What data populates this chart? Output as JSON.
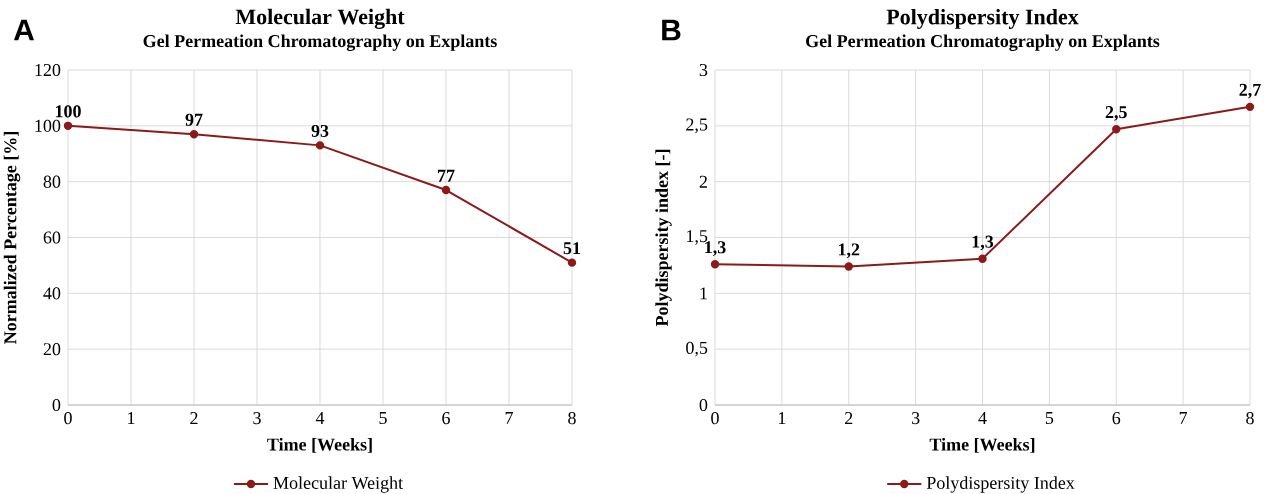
{
  "chart_data": [
    {
      "type": "line",
      "title": "Molecular Weight",
      "subtitle": "Gel Permeation Chromatography on Explants",
      "xlabel": "Time [Weeks]",
      "ylabel": "Normalized Percentage [%]",
      "annotations": [
        "A"
      ],
      "x": [
        0,
        2,
        4,
        6,
        8
      ],
      "series": [
        {
          "name": "Molecular Weight",
          "color": "#8b1a1a",
          "values": [
            100,
            97,
            93,
            77,
            51
          ]
        }
      ],
      "data_labels": true,
      "xlim": [
        0,
        8
      ],
      "ylim": [
        0,
        120
      ],
      "xticks": [
        0,
        1,
        2,
        3,
        4,
        5,
        6,
        7,
        8
      ],
      "yticks": [
        0,
        20,
        40,
        60,
        80,
        100,
        120
      ],
      "grid": true,
      "legend": "bottom",
      "marker": "circle",
      "line_style": "solid"
    },
    {
      "type": "line",
      "title": "Polydispersity Index",
      "subtitle": "Gel Permeation Chromatography on Explants",
      "xlabel": "Time [Weeks]",
      "ylabel": "Polydispersity index [-]",
      "annotations": [
        "B"
      ],
      "x": [
        0,
        2,
        4,
        6,
        8
      ],
      "series": [
        {
          "name": "Polydispersity Index",
          "color": "#8b1a1a",
          "values": [
            1.26,
            1.24,
            1.31,
            2.47,
            2.67
          ],
          "value_labels": [
            "1,3",
            "1,2",
            "1,3",
            "2,5",
            "2,7"
          ]
        }
      ],
      "xlim": [
        0,
        8
      ],
      "ylim": [
        0,
        3
      ],
      "xticks": [
        0,
        1,
        2,
        3,
        4,
        5,
        6,
        7,
        8
      ],
      "yticks": [
        0,
        {
          "value": 0.5,
          "label": "0,5"
        },
        1,
        {
          "value": 1.5,
          "label": "1,5"
        },
        2,
        {
          "value": 2.5,
          "label": "2,5"
        },
        3
      ],
      "grid": true,
      "legend": "bottom",
      "marker": "circle",
      "line_style": "solid"
    }
  ]
}
